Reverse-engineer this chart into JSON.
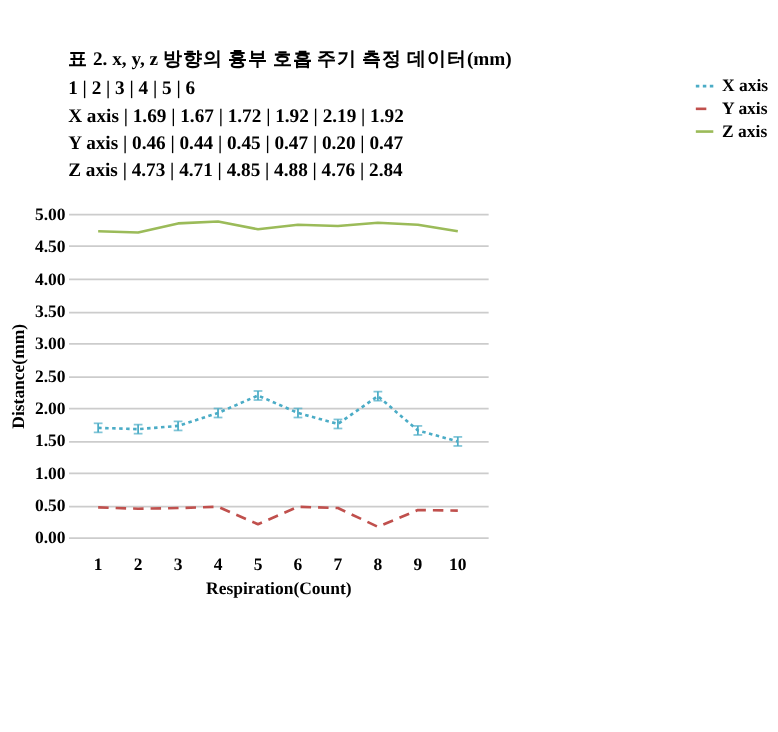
{
  "chart_data": [
    {
      "type": "other",
      "title": "표 2. x, y, z 방향의 흉부 호흡 주기 측정 데이터(mm)",
      "annotations": [
        "1 | 2 | 3 | 4 | 5 | 6",
        "X axis | 1.69 | 1.67 | 1.72 | 1.92 | 2.19 | 1.92",
        "Y axis | 0.46 | 0.44 | 0.45 | 0.47 | 0.20 | 0.47",
        "Z axis | 4.73 | 4.71 | 4.85 | 4.88 | 4.76 | 2.84"
      ]
    },
    {
      "type": "line",
      "xlabel": "Respiration(Count)",
      "ylabel": "Distance(mm)",
      "categories": [
        "1",
        "2",
        "3",
        "4",
        "5",
        "6",
        "7",
        "8",
        "9",
        "10"
      ],
      "series": [
        {
          "name": "X axis",
          "color": "#4bacc6",
          "line_style": "dotted",
          "values": [
            1.69,
            1.67,
            1.72,
            1.92,
            2.19,
            1.92,
            1.75,
            2.18,
            1.65,
            1.48
          ],
          "errors": [
            0.07,
            0.07,
            0.07,
            0.07,
            0.07,
            0.07,
            0.07,
            0.07,
            0.07,
            0.07
          ]
        },
        {
          "name": "Y axis",
          "color": "#c0504d",
          "line_style": "dashed",
          "values": [
            0.46,
            0.44,
            0.45,
            0.47,
            0.2,
            0.47,
            0.45,
            0.16,
            0.42,
            0.41
          ]
        },
        {
          "name": "Z axis",
          "color": "#9bbb59",
          "line_style": "solid",
          "values": [
            4.73,
            4.71,
            4.85,
            4.88,
            4.76,
            4.83,
            4.81,
            4.86,
            4.83,
            4.73
          ]
        }
      ],
      "ylim": [
        0,
        5
      ],
      "yticks": [
        {
          "value": 0,
          "label": "0.00"
        },
        {
          "value": 0.5,
          "label": "0.50"
        },
        {
          "value": 1,
          "label": "1.00"
        },
        {
          "value": 1.5,
          "label": "1.50"
        },
        {
          "value": 2,
          "label": "2.00"
        },
        {
          "value": 2.5,
          "label": "2.50"
        },
        {
          "value": 3,
          "label": "3.00"
        },
        {
          "value": 3.5,
          "label": "3.50"
        },
        {
          "value": 4,
          "label": "4.00"
        },
        {
          "value": 4.5,
          "label": "4.50"
        },
        {
          "value": 5,
          "label": "5.00"
        }
      ],
      "grid": "y",
      "legend": "right",
      "marker": "none"
    }
  ]
}
